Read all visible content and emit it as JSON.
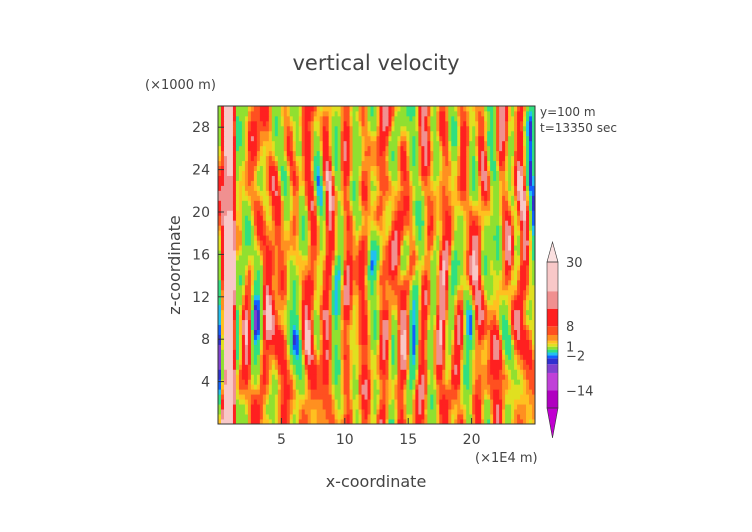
{
  "chart_data": {
    "type": "heatmap",
    "title": "vertical velocity",
    "xlabel": "x-coordinate",
    "ylabel": "z-coordinate",
    "x_unit": "(×1E4 m)",
    "y_unit": "(×1000 m)",
    "annotations": [
      "y=100 m",
      "t=13350 sec"
    ],
    "xlim": [
      0,
      25
    ],
    "ylim": [
      0,
      30
    ],
    "x_ticks": [
      5,
      10,
      15,
      20
    ],
    "y_ticks": [
      4,
      8,
      12,
      16,
      20,
      24,
      28
    ],
    "colorbar": {
      "labels": [
        "30",
        "8",
        "1",
        "−2",
        "−14"
      ],
      "label_values": [
        30,
        8,
        1,
        -2,
        -14
      ],
      "levels": [
        -20,
        -14,
        -8,
        -5,
        -3,
        -2,
        -1,
        0,
        1,
        2,
        3,
        5,
        8,
        14,
        20,
        30
      ],
      "colors": [
        "#b000c0",
        "#c040d8",
        "#8040d0",
        "#3030d0",
        "#1060ff",
        "#20c0f0",
        "#30e080",
        "#90e030",
        "#e0e020",
        "#ffc020",
        "#ff9020",
        "#ff5020",
        "#ff2020",
        "#f09090",
        "#f8c8c8"
      ]
    }
  }
}
